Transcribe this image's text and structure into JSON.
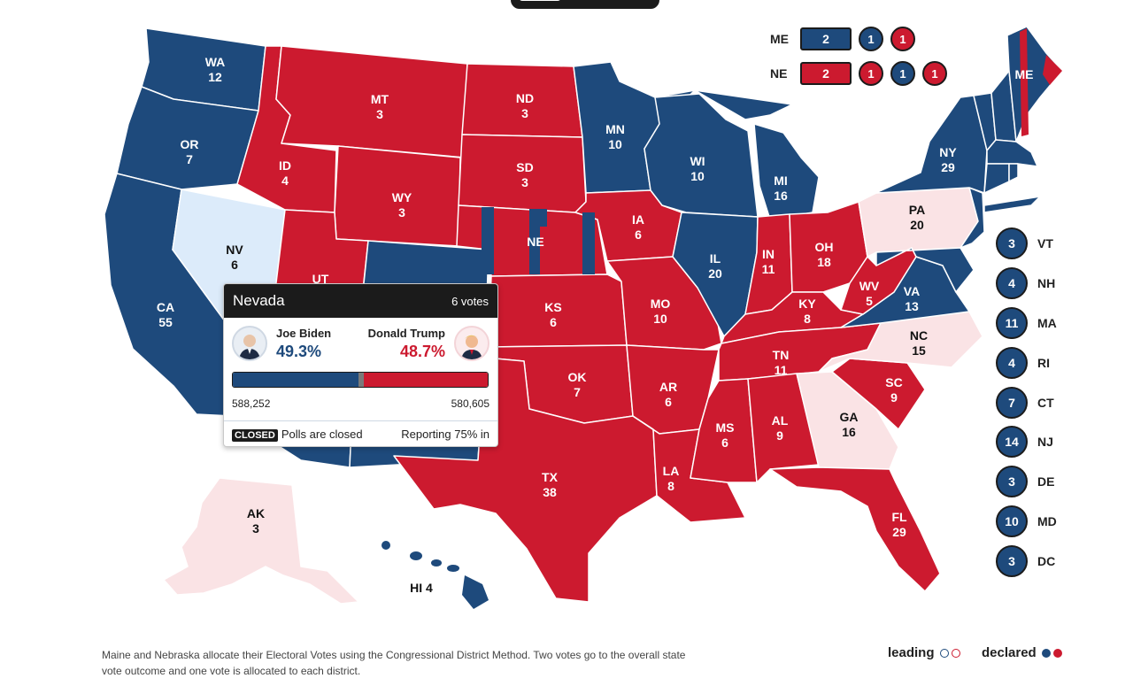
{
  "colors": {
    "dem": "#1e4a7c",
    "rep": "#cc1a2f",
    "dem_leading": "#dcebfa",
    "rep_leading": "#fae3e5",
    "dark": "#1b1b1b"
  },
  "states": [
    {
      "abbr": "WA",
      "votes": "12",
      "status": "dem"
    },
    {
      "abbr": "OR",
      "votes": "7",
      "status": "dem"
    },
    {
      "abbr": "CA",
      "votes": "55",
      "status": "dem"
    },
    {
      "abbr": "NV",
      "votes": "6",
      "status": "dem_leading"
    },
    {
      "abbr": "ID",
      "votes": "4",
      "status": "rep"
    },
    {
      "abbr": "MT",
      "votes": "3",
      "status": "rep"
    },
    {
      "abbr": "WY",
      "votes": "3",
      "status": "rep"
    },
    {
      "abbr": "UT",
      "votes": "",
      "status": "rep"
    },
    {
      "abbr": "ND",
      "votes": "3",
      "status": "rep"
    },
    {
      "abbr": "SD",
      "votes": "3",
      "status": "rep"
    },
    {
      "abbr": "NE",
      "votes": "",
      "status": "rep"
    },
    {
      "abbr": "KS",
      "votes": "6",
      "status": "rep"
    },
    {
      "abbr": "OK",
      "votes": "7",
      "status": "rep"
    },
    {
      "abbr": "TX",
      "votes": "38",
      "status": "rep"
    },
    {
      "abbr": "MN",
      "votes": "10",
      "status": "dem"
    },
    {
      "abbr": "IA",
      "votes": "6",
      "status": "rep"
    },
    {
      "abbr": "MO",
      "votes": "10",
      "status": "rep"
    },
    {
      "abbr": "AR",
      "votes": "6",
      "status": "rep"
    },
    {
      "abbr": "LA",
      "votes": "8",
      "status": "rep"
    },
    {
      "abbr": "WI",
      "votes": "10",
      "status": "dem"
    },
    {
      "abbr": "IL",
      "votes": "20",
      "status": "dem"
    },
    {
      "abbr": "MI",
      "votes": "16",
      "status": "dem"
    },
    {
      "abbr": "IN",
      "votes": "11",
      "status": "rep"
    },
    {
      "abbr": "OH",
      "votes": "18",
      "status": "rep"
    },
    {
      "abbr": "KY",
      "votes": "8",
      "status": "rep"
    },
    {
      "abbr": "TN",
      "votes": "11",
      "status": "rep"
    },
    {
      "abbr": "MS",
      "votes": "6",
      "status": "rep"
    },
    {
      "abbr": "AL",
      "votes": "9",
      "status": "rep"
    },
    {
      "abbr": "GA",
      "votes": "16",
      "status": "rep_leading"
    },
    {
      "abbr": "FL",
      "votes": "29",
      "status": "rep"
    },
    {
      "abbr": "SC",
      "votes": "9",
      "status": "rep"
    },
    {
      "abbr": "NC",
      "votes": "15",
      "status": "rep_leading"
    },
    {
      "abbr": "VA",
      "votes": "13",
      "status": "dem"
    },
    {
      "abbr": "WV",
      "votes": "5",
      "status": "rep"
    },
    {
      "abbr": "PA",
      "votes": "20",
      "status": "rep_leading"
    },
    {
      "abbr": "NY",
      "votes": "29",
      "status": "dem"
    },
    {
      "abbr": "ME",
      "votes": "",
      "status": "dem"
    },
    {
      "abbr": "AK",
      "votes": "3",
      "status": "rep_leading"
    },
    {
      "abbr": "HI",
      "votes": "4",
      "status": "dem"
    }
  ],
  "districts": {
    "me": {
      "name": "ME",
      "statewide": "2",
      "statewide_party": "dem",
      "districts": [
        {
          "votes": "1",
          "party": "dem"
        },
        {
          "votes": "1",
          "party": "rep"
        }
      ]
    },
    "ne": {
      "name": "NE",
      "statewide": "2",
      "statewide_party": "rep",
      "districts": [
        {
          "votes": "1",
          "party": "rep"
        },
        {
          "votes": "1",
          "party": "dem"
        },
        {
          "votes": "1",
          "party": "rep"
        }
      ]
    }
  },
  "small_states": [
    {
      "abbr": "VT",
      "votes": "3"
    },
    {
      "abbr": "NH",
      "votes": "4"
    },
    {
      "abbr": "MA",
      "votes": "11"
    },
    {
      "abbr": "RI",
      "votes": "4"
    },
    {
      "abbr": "CT",
      "votes": "7"
    },
    {
      "abbr": "NJ",
      "votes": "14"
    },
    {
      "abbr": "DE",
      "votes": "3"
    },
    {
      "abbr": "MD",
      "votes": "10"
    },
    {
      "abbr": "DC",
      "votes": "3"
    }
  ],
  "tooltip": {
    "state": "Nevada",
    "votes_label": "6 votes",
    "dem": {
      "name": "Joe Biden",
      "pct": "49.3%",
      "votes": "588,252"
    },
    "rep": {
      "name": "Donald Trump",
      "pct": "48.7%",
      "votes": "580,605"
    },
    "status_badge": "CLOSED",
    "status_text": "Polls are closed",
    "reporting": "Reporting 75% in",
    "dem_share": 0.493,
    "rep_share": 0.487
  },
  "footer": {
    "note": "Maine and Nebraska allocate their Electoral Votes using the Congressional District Method. Two votes go to the overall state vote outcome and one vote is allocated to each district.",
    "leading_label": "leading",
    "declared_label": "declared"
  }
}
